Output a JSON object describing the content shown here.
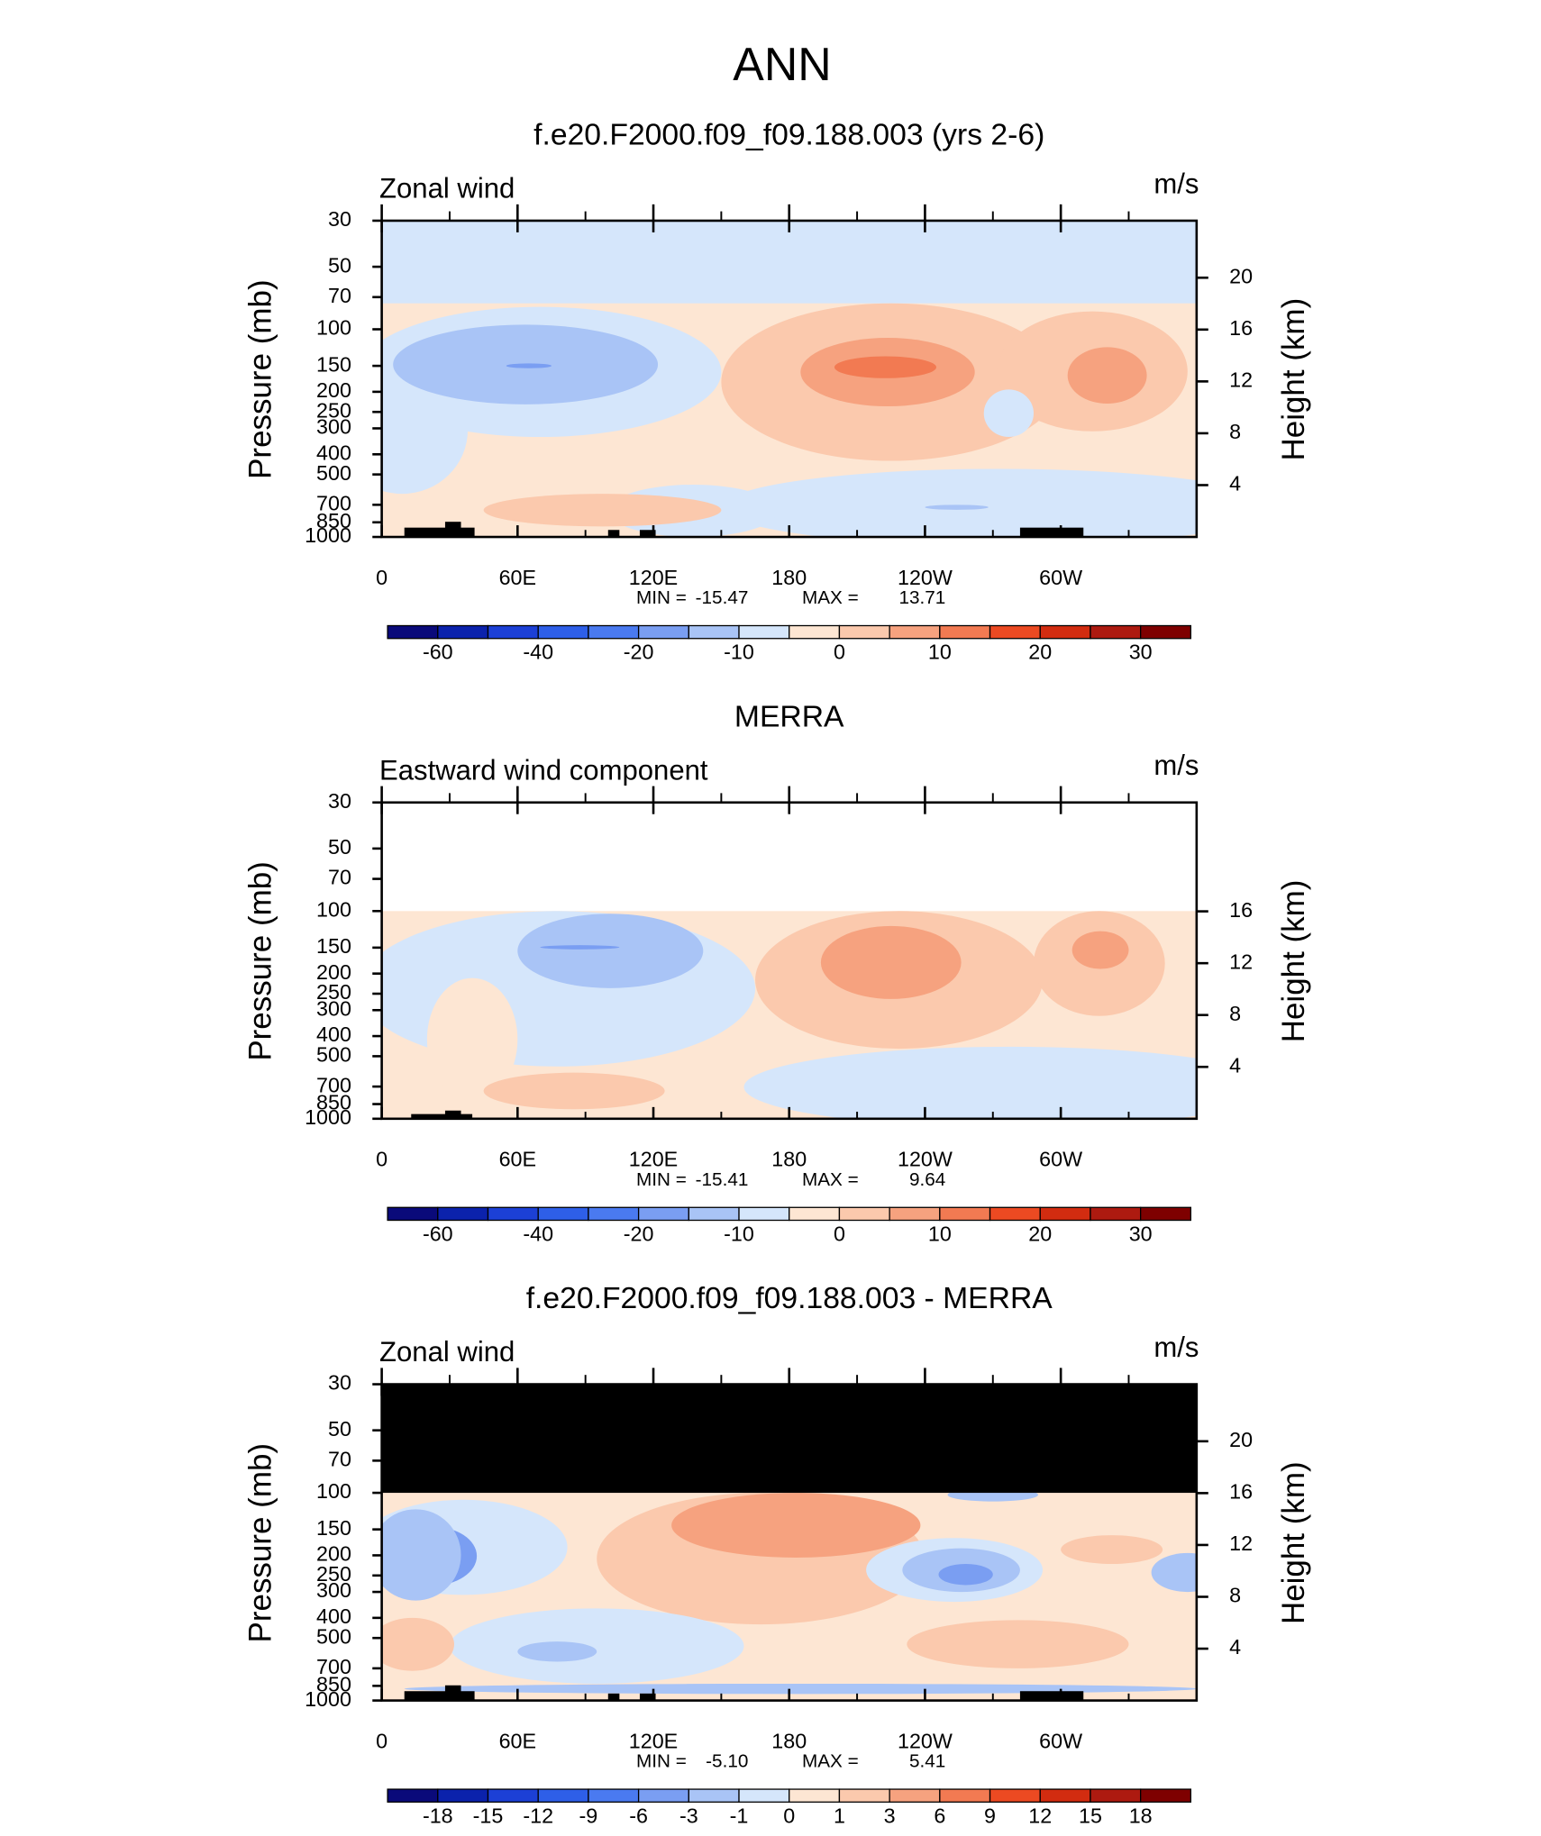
{
  "title": "ANN",
  "chart_data": [
    {
      "type": "contour",
      "title": "f.e20.F2000.f09_f09.188.003 (yrs 2-6)",
      "left_label": "Zonal wind",
      "units": "m/s",
      "ylabel": "Pressure (mb)",
      "y2label": "Height (km)",
      "log_y": true,
      "xlim": [
        0,
        360
      ],
      "xticks": [
        0,
        {
          "value": 60,
          "label": "60E"
        },
        {
          "value": 120,
          "label": "120E"
        },
        180,
        {
          "value": 240,
          "label": "120W"
        },
        {
          "value": 300,
          "label": "60W"
        }
      ],
      "xminor_ticks": [
        30,
        90,
        150,
        210,
        270,
        330
      ],
      "ylim": [
        1000,
        30
      ],
      "yticks": [
        30,
        50,
        70,
        100,
        150,
        200,
        250,
        300,
        400,
        500,
        700,
        850,
        1000
      ],
      "y2lim": [
        0,
        24.4
      ],
      "y2ticks": [
        4,
        8,
        12,
        16,
        20
      ],
      "min_label": "MIN =",
      "min": -15.47,
      "max_label": "MAX =",
      "max": 13.71,
      "colorbar": {
        "colors": [
          "#0a0a7a",
          "#0b22ac",
          "#1c40d6",
          "#2e5fe8",
          "#4a7af0",
          "#7a9ef2",
          "#a9c4f6",
          "#d5e6fb",
          "#fde6d3",
          "#fbc9ad",
          "#f6a27f",
          "#f27a52",
          "#ec4a22",
          "#d22c10",
          "#ad1a10",
          "#7e0000"
        ],
        "labels": [
          -60,
          -40,
          -20,
          -10,
          0,
          10,
          20,
          30
        ]
      }
    },
    {
      "type": "contour",
      "title": "MERRA",
      "left_label": "Eastward wind component",
      "units": "m/s",
      "ylabel": "Pressure (mb)",
      "y2label": "Height (km)",
      "log_y": true,
      "xlim": [
        0,
        360
      ],
      "xticks": [
        0,
        {
          "value": 60,
          "label": "60E"
        },
        {
          "value": 120,
          "label": "120E"
        },
        180,
        {
          "value": 240,
          "label": "120W"
        },
        {
          "value": 300,
          "label": "60W"
        }
      ],
      "xminor_ticks": [
        30,
        90,
        150,
        210,
        270,
        330
      ],
      "ylim": [
        1000,
        30
      ],
      "yticks": [
        30,
        50,
        70,
        100,
        150,
        200,
        250,
        300,
        400,
        500,
        700,
        850,
        1000
      ],
      "y2lim": [
        0,
        24.4
      ],
      "y2ticks": [
        4,
        8,
        12,
        16
      ],
      "min_label": "MIN =",
      "min": -15.41,
      "max_label": "MAX =",
      "max": 9.64,
      "colorbar": {
        "colors": [
          "#0a0a7a",
          "#0b22ac",
          "#1c40d6",
          "#2e5fe8",
          "#4a7af0",
          "#7a9ef2",
          "#a9c4f6",
          "#d5e6fb",
          "#fde6d3",
          "#fbc9ad",
          "#f6a27f",
          "#f27a52",
          "#ec4a22",
          "#d22c10",
          "#ad1a10",
          "#7e0000"
        ],
        "labels": [
          -60,
          -40,
          -20,
          -10,
          0,
          10,
          20,
          30
        ]
      }
    },
    {
      "type": "contour",
      "title": "f.e20.F2000.f09_f09.188.003 - MERRA",
      "left_label": "Zonal wind",
      "units": "m/s",
      "ylabel": "Pressure (mb)",
      "y2label": "Height (km)",
      "log_y": true,
      "xlim": [
        0,
        360
      ],
      "xticks": [
        0,
        {
          "value": 60,
          "label": "60E"
        },
        {
          "value": 120,
          "label": "120E"
        },
        180,
        {
          "value": 240,
          "label": "120W"
        },
        {
          "value": 300,
          "label": "60W"
        }
      ],
      "xminor_ticks": [
        30,
        90,
        150,
        210,
        270,
        330
      ],
      "ylim": [
        1000,
        30
      ],
      "yticks": [
        30,
        50,
        70,
        100,
        150,
        200,
        250,
        300,
        400,
        500,
        700,
        850,
        1000
      ],
      "y2lim": [
        0,
        24.4
      ],
      "y2ticks": [
        4,
        8,
        12,
        16,
        20
      ],
      "min_label": "MIN =",
      "min": {
        "value": -5.1,
        "label": "-5.10"
      },
      "max_label": "MAX =",
      "max": 5.41,
      "colorbar": {
        "colors": [
          "#0a0a7a",
          "#0b22ac",
          "#1c40d6",
          "#2e5fe8",
          "#4a7af0",
          "#7a9ef2",
          "#a9c4f6",
          "#d5e6fb",
          "#fde6d3",
          "#fbc9ad",
          "#f6a27f",
          "#f27a52",
          "#ec4a22",
          "#d22c10",
          "#ad1a10",
          "#7e0000"
        ],
        "labels": [
          -18,
          -15,
          -12,
          -9,
          -6,
          -3,
          -1,
          0,
          1,
          3,
          6,
          9,
          12,
          15,
          18
        ]
      }
    }
  ]
}
